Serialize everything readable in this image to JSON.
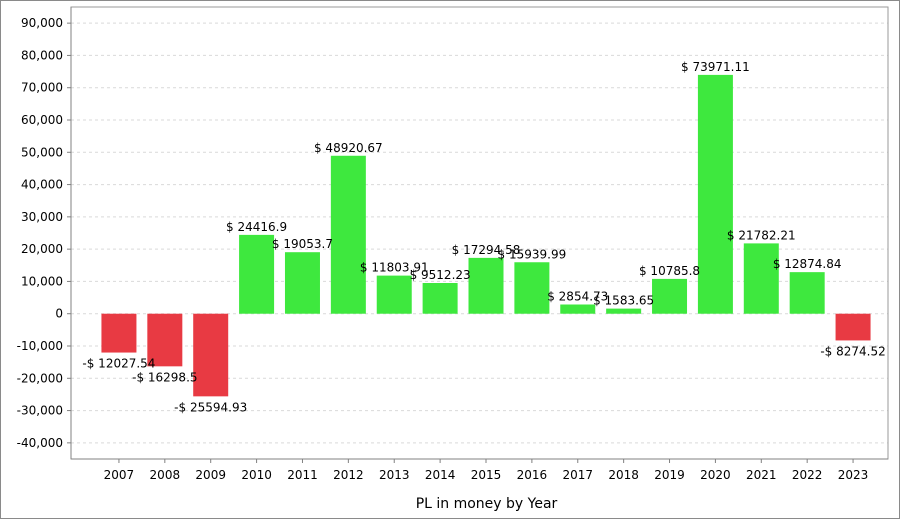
{
  "chart_data": {
    "type": "bar",
    "title": "",
    "xlabel": "PL in money by Year",
    "ylabel": "",
    "ylim": [
      -45000,
      95000
    ],
    "yticks": [
      -40000,
      -30000,
      -20000,
      -10000,
      0,
      10000,
      20000,
      30000,
      40000,
      50000,
      60000,
      70000,
      80000,
      90000
    ],
    "ytick_labels": [
      "-40,000",
      "-30,000",
      "-20,000",
      "-10,000",
      "0",
      "10,000",
      "20,000",
      "30,000",
      "40,000",
      "50,000",
      "60,000",
      "70,000",
      "80,000",
      "90,000"
    ],
    "grid": true,
    "legend": "none",
    "categories": [
      "2007",
      "2008",
      "2009",
      "2010",
      "2011",
      "2012",
      "2013",
      "2014",
      "2015",
      "2016",
      "2017",
      "2018",
      "2019",
      "2020",
      "2021",
      "2022",
      "2023"
    ],
    "values": [
      -12027.54,
      -16298.5,
      -25594.93,
      24416.9,
      19053.7,
      48920.67,
      11803.91,
      9512.23,
      17294.58,
      15939.99,
      2854.73,
      1583.65,
      10785.8,
      73971.11,
      21782.21,
      12874.84,
      -8274.52
    ],
    "data_labels": [
      "-$ 12027.54",
      "-$ 16298.5",
      "-$ 25594.93",
      "$ 24416.9",
      "$ 19053.7",
      "$ 48920.67",
      "$ 11803.91",
      "$ 9512.23",
      "$ 17294.58",
      "$ 15939.99",
      "$ 2854.73",
      "$ 1583.65",
      "$ 10785.8",
      "$ 73971.11",
      "$ 21782.21",
      "$ 12874.84",
      "-$ 8274.52"
    ],
    "colors": {
      "positive": "#3ee83e",
      "negative": "#e83a43"
    }
  }
}
